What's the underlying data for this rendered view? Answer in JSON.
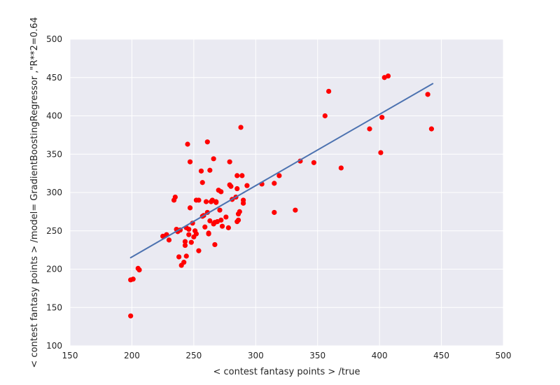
{
  "chart_data": {
    "type": "scatter",
    "xlabel": "<  contest fantasy points > /true",
    "ylabel": "<  contest fantasy points > /model= GradientBoostingRegressor ,\"R**2=0.64",
    "xlim": [
      150,
      500
    ],
    "ylim": [
      100,
      500
    ],
    "xticks": [
      "150",
      "200",
      "250",
      "300",
      "350",
      "400",
      "450",
      "500"
    ],
    "yticks": [
      "100",
      "150",
      "200",
      "250",
      "300",
      "350",
      "400",
      "450",
      "500"
    ],
    "grid": true,
    "points": [
      [
        199,
        139
      ],
      [
        199,
        186
      ],
      [
        201,
        187
      ],
      [
        205,
        201
      ],
      [
        206,
        199
      ],
      [
        225,
        243
      ],
      [
        228,
        245
      ],
      [
        230,
        238
      ],
      [
        234,
        290
      ],
      [
        235,
        294
      ],
      [
        236,
        252
      ],
      [
        237,
        249
      ],
      [
        238,
        216
      ],
      [
        239,
        251
      ],
      [
        240,
        205
      ],
      [
        242,
        209
      ],
      [
        243,
        236
      ],
      [
        243,
        231
      ],
      [
        244,
        217
      ],
      [
        244,
        254
      ],
      [
        245,
        363
      ],
      [
        246,
        245
      ],
      [
        246,
        252
      ],
      [
        247,
        340
      ],
      [
        247,
        280
      ],
      [
        248,
        235
      ],
      [
        249,
        260
      ],
      [
        250,
        242
      ],
      [
        251,
        250
      ],
      [
        252,
        290
      ],
      [
        252,
        246
      ],
      [
        254,
        290
      ],
      [
        254,
        224
      ],
      [
        256,
        328
      ],
      [
        257,
        313
      ],
      [
        257,
        269
      ],
      [
        258,
        270
      ],
      [
        259,
        255
      ],
      [
        260,
        288
      ],
      [
        261,
        366
      ],
      [
        261,
        274
      ],
      [
        262,
        247
      ],
      [
        262,
        246
      ],
      [
        263,
        263
      ],
      [
        263,
        329
      ],
      [
        264,
        288
      ],
      [
        265,
        290
      ],
      [
        266,
        259
      ],
      [
        266,
        344
      ],
      [
        267,
        261
      ],
      [
        267,
        232
      ],
      [
        268,
        287
      ],
      [
        268,
        288
      ],
      [
        269,
        262
      ],
      [
        270,
        303
      ],
      [
        271,
        277
      ],
      [
        272,
        301
      ],
      [
        272,
        264
      ],
      [
        273,
        256
      ],
      [
        276,
        268
      ],
      [
        278,
        254
      ],
      [
        279,
        340
      ],
      [
        279,
        310
      ],
      [
        280,
        308
      ],
      [
        281,
        291
      ],
      [
        284,
        294
      ],
      [
        285,
        322
      ],
      [
        285,
        262
      ],
      [
        285,
        305
      ],
      [
        286,
        264
      ],
      [
        286,
        272
      ],
      [
        287,
        275
      ],
      [
        288,
        385
      ],
      [
        289,
        322
      ],
      [
        290,
        290
      ],
      [
        290,
        286
      ],
      [
        293,
        309
      ],
      [
        305,
        311
      ],
      [
        315,
        312
      ],
      [
        315,
        274
      ],
      [
        319,
        322
      ],
      [
        332,
        277
      ],
      [
        336,
        341
      ],
      [
        347,
        339
      ],
      [
        356,
        400
      ],
      [
        359,
        432
      ],
      [
        369,
        332
      ],
      [
        392,
        383
      ],
      [
        401,
        352
      ],
      [
        402,
        398
      ],
      [
        404,
        450
      ],
      [
        407,
        452
      ],
      [
        439,
        428
      ],
      [
        442,
        383
      ]
    ],
    "fit_line": {
      "x": [
        199,
        443
      ],
      "y": [
        215,
        442
      ]
    },
    "colors": {
      "background": "#eaeaf2",
      "grid": "#ffffff",
      "points": "#ff0000",
      "line": "#4c72b0"
    }
  }
}
